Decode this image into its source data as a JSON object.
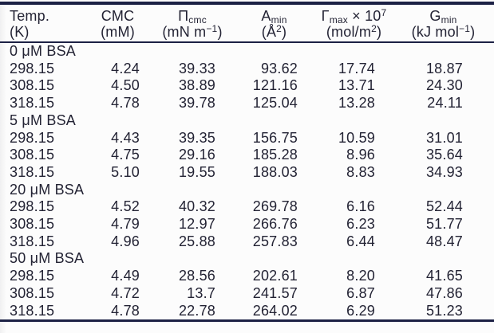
{
  "page": {
    "background": "#fcfcfc",
    "rule_color": "#1c2145",
    "text_color": "#232334"
  },
  "table": {
    "columns": [
      {
        "id": "temperature",
        "name_html": "Temp.",
        "unit_html": "(K)"
      },
      {
        "id": "cmc",
        "name_html": "CMC",
        "unit_html": "(mM)"
      },
      {
        "id": "pi_cmc",
        "name_html": "&Pi;<sub>cmc</sub>",
        "unit_html": "(mN m<sup>&minus;1</sup>)"
      },
      {
        "id": "a_min",
        "name_html": "A<sub>min</sub>",
        "unit_html": "(&Aring;<sup>2</sup>)"
      },
      {
        "id": "gamma_max_e7",
        "name_html": "&Gamma;<sub>max</sub> &times; 10<sup>7</sup>",
        "unit_html": "(mol/m<sup>2</sup>)"
      },
      {
        "id": "g_min",
        "name_html": "G<sub>min</sub>",
        "unit_html": "(kJ mol<sup>&minus;1</sup>)"
      }
    ],
    "sections": [
      {
        "label": "0 μM BSA",
        "rows": [
          [
            "298.15",
            "4.24",
            "39.33",
            "93.62",
            "17.74",
            "18.87"
          ],
          [
            "308.15",
            "4.50",
            "38.89",
            "121.16",
            "13.71",
            "24.30"
          ],
          [
            "318.15",
            "4.78",
            "39.78",
            "125.04",
            "13.28",
            "24.11"
          ]
        ]
      },
      {
        "label": "5 μM BSA",
        "rows": [
          [
            "298.15",
            "4.43",
            "39.35",
            "156.75",
            "10.59",
            "31.01"
          ],
          [
            "308.15",
            "4.75",
            "29.16",
            "185.28",
            "8.96",
            "35.64"
          ],
          [
            "318.15",
            "5.10",
            "19.55",
            "188.03",
            "8.83",
            "34.93"
          ]
        ]
      },
      {
        "label": "20 μM BSA",
        "rows": [
          [
            "298.15",
            "4.52",
            "40.32",
            "269.78",
            "6.16",
            "52.44"
          ],
          [
            "308.15",
            "4.79",
            "12.97",
            "266.76",
            "6.23",
            "51.77"
          ],
          [
            "318.15",
            "4.96",
            "25.88",
            "257.83",
            "6.44",
            "48.47"
          ]
        ]
      },
      {
        "label": "50 μM BSA",
        "rows": [
          [
            "298.15",
            "4.49",
            "28.56",
            "202.61",
            "8.20",
            "41.65"
          ],
          [
            "308.15",
            "4.72",
            "13.7",
            "241.57",
            "6.87",
            "47.86"
          ],
          [
            "318.15",
            "4.78",
            "22.78",
            "264.02",
            "6.29",
            "51.23"
          ]
        ]
      }
    ]
  }
}
